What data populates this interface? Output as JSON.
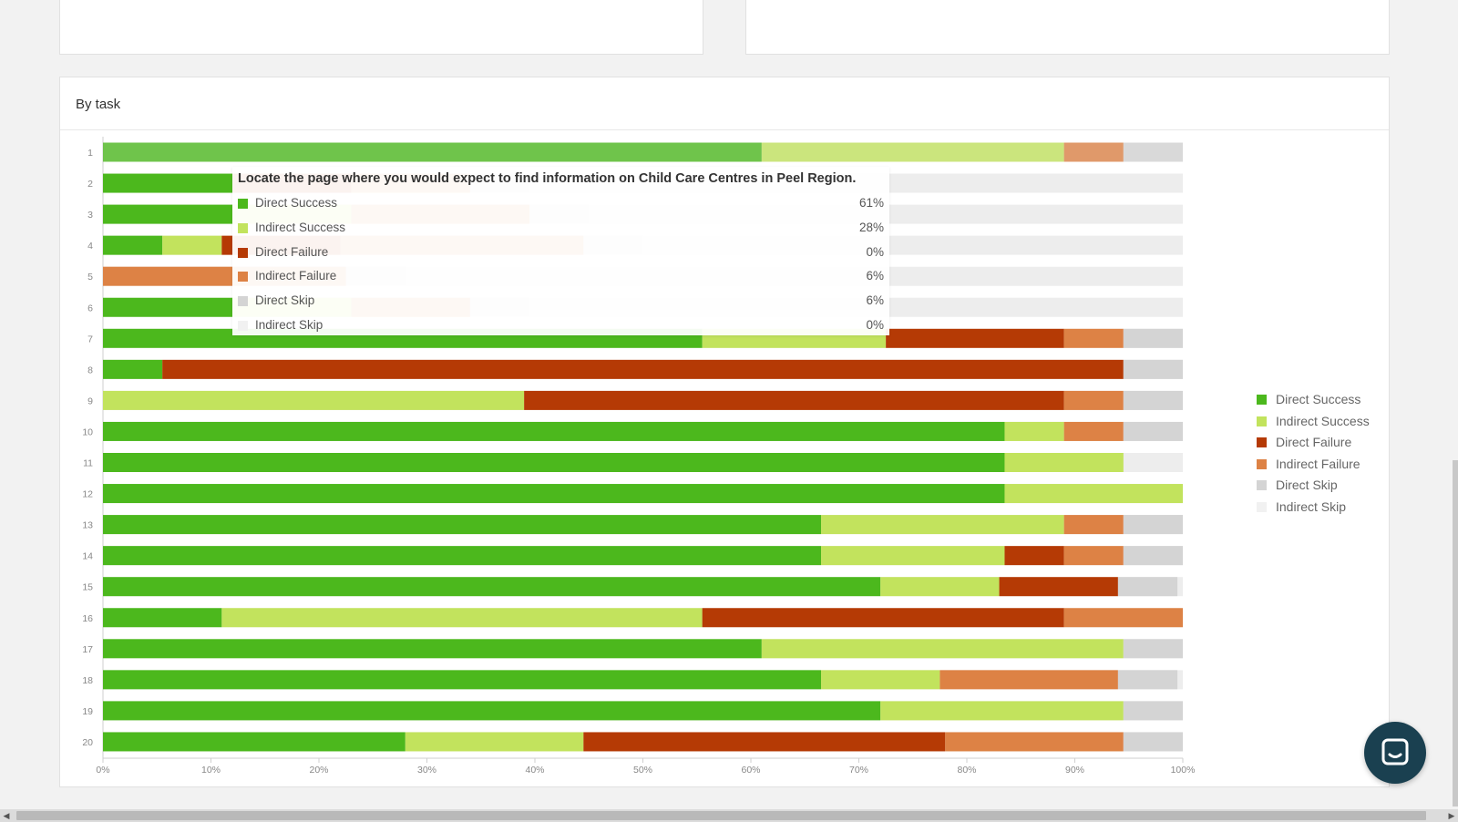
{
  "panel": {
    "title": "By task"
  },
  "colors": {
    "direct_success": "#4cb81d",
    "indirect_success": "#c2e35d",
    "direct_failure": "#b53a05",
    "indirect_failure": "#dd8245",
    "direct_skip": "#d4d4d4",
    "indirect_skip": "#f1f1f1"
  },
  "legend": [
    {
      "key": "direct_success",
      "label": "Direct Success"
    },
    {
      "key": "indirect_success",
      "label": "Indirect Success"
    },
    {
      "key": "direct_failure",
      "label": "Direct Failure"
    },
    {
      "key": "indirect_failure",
      "label": "Indirect Failure"
    },
    {
      "key": "direct_skip",
      "label": "Direct Skip"
    },
    {
      "key": "indirect_skip",
      "label": "Indirect Skip"
    }
  ],
  "tooltip": {
    "title": "Locate the page where you would expect to find information on Child Care Centres in Peel Region.",
    "rows": [
      {
        "key": "direct_success",
        "label": "Direct Success",
        "value": "61%"
      },
      {
        "key": "indirect_success",
        "label": "Indirect Success",
        "value": "28%"
      },
      {
        "key": "direct_failure",
        "label": "Direct Failure",
        "value": "0%"
      },
      {
        "key": "indirect_failure",
        "label": "Indirect Failure",
        "value": "6%"
      },
      {
        "key": "direct_skip",
        "label": "Direct Skip",
        "value": "6%"
      },
      {
        "key": "indirect_skip",
        "label": "Indirect Skip",
        "value": "0%"
      }
    ]
  },
  "chart_data": {
    "type": "bar",
    "orientation": "horizontal",
    "stacked": true,
    "categories": [
      "1",
      "2",
      "3",
      "4",
      "5",
      "6",
      "7",
      "8",
      "9",
      "10",
      "11",
      "12",
      "13",
      "14",
      "15",
      "16",
      "17",
      "18",
      "19",
      "20"
    ],
    "xlim": [
      0,
      100
    ],
    "x_ticks": [
      "0%",
      "10%",
      "20%",
      "30%",
      "40%",
      "50%",
      "60%",
      "70%",
      "80%",
      "90%",
      "100%"
    ],
    "legend_position": "right",
    "series": [
      {
        "name": "Direct Success",
        "key": "direct_success",
        "values": [
          61,
          12,
          12,
          5.5,
          0,
          12,
          55.5,
          5.5,
          0,
          83.5,
          83.5,
          83.5,
          66.5,
          66.5,
          72,
          11,
          61,
          66.5,
          72,
          28
        ]
      },
      {
        "name": "Indirect Success",
        "key": "indirect_success",
        "values": [
          28,
          0,
          11,
          5.5,
          0,
          11,
          17,
          0,
          39,
          5.5,
          11,
          16.5,
          22.5,
          17,
          11,
          44.5,
          33.5,
          11,
          22.5,
          16.5
        ]
      },
      {
        "name": "Direct Failure",
        "key": "direct_failure",
        "values": [
          0,
          11,
          0,
          11,
          0,
          0,
          16.5,
          89,
          50,
          0,
          0,
          0,
          0,
          5.5,
          11,
          33.5,
          0,
          0,
          0,
          33.5
        ]
      },
      {
        "name": "Indirect Failure",
        "key": "indirect_failure",
        "values": [
          5.5,
          11,
          16.5,
          22.5,
          22.5,
          11,
          5.5,
          0,
          5.5,
          5.5,
          0,
          0,
          5.5,
          5.5,
          0,
          11,
          0,
          16.5,
          0,
          16.5
        ]
      },
      {
        "name": "Direct Skip",
        "key": "direct_skip",
        "values": [
          5.5,
          5.5,
          5.5,
          5.5,
          5.5,
          5.5,
          5.5,
          5.5,
          5.5,
          5.5,
          0,
          0,
          5.5,
          5.5,
          5.5,
          0,
          5.5,
          5.5,
          5.5,
          5.5
        ]
      },
      {
        "name": "Indirect Skip",
        "key": "indirect_skip",
        "values": [
          0,
          0,
          0,
          0,
          0,
          0,
          0,
          0,
          0,
          0,
          0,
          0,
          0,
          0,
          0,
          0,
          0,
          0,
          0,
          0
        ]
      }
    ]
  }
}
